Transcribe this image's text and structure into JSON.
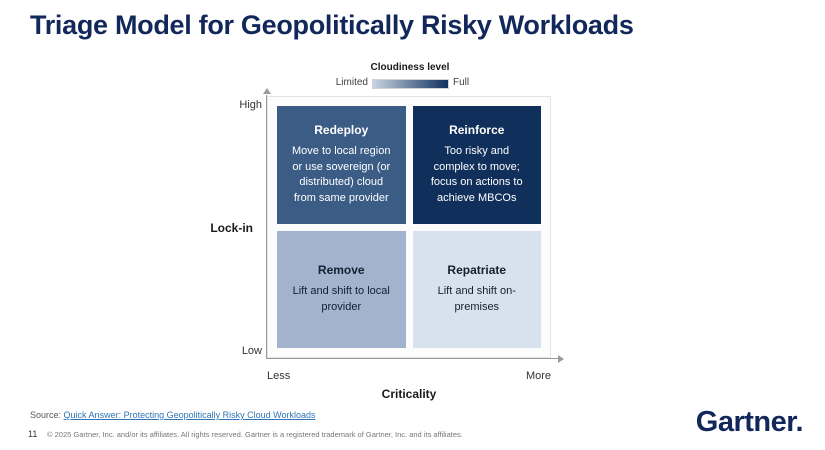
{
  "slide": {
    "title": "Triage Model for Geopolitically Risky Workloads",
    "page_number": "11",
    "source_label": "Source:",
    "source_link": "Quick Answer: Protecting Geopolitically Risky Cloud Workloads",
    "copyright": "© 2025 Gartner, Inc. and/or its affiliates. All rights reserved. Gartner is a registered trademark of Gartner, Inc. and its affiliates.",
    "logo_text": "Gartner."
  },
  "legend": {
    "title": "Cloudiness level",
    "min_label": "Limited",
    "max_label": "Full",
    "gradient_start": "#c9d4e2",
    "gradient_end": "#10305e"
  },
  "matrix": {
    "y_axis": {
      "label": "Lock-in",
      "top": "High",
      "bottom": "Low"
    },
    "x_axis": {
      "label": "Criticality",
      "left": "Less",
      "right": "More"
    },
    "quadrants": [
      {
        "position": "top-left",
        "title": "Redeploy",
        "body": "Move to local region or use sovereign (or distributed) cloud from same provider",
        "bg": "#3a5c85",
        "text": "#ffffff"
      },
      {
        "position": "top-right",
        "title": "Reinforce",
        "body": "Too risky and complex to move; focus on actions to achieve MBCOs",
        "bg": "#112f5b",
        "text": "#ffffff"
      },
      {
        "position": "bottom-left",
        "title": "Remove",
        "body": "Lift and shift to local provider",
        "bg": "#a3b3cd",
        "text": "#141f30"
      },
      {
        "position": "bottom-right",
        "title": "Repatriate",
        "body": "Lift and shift on-premises",
        "bg": "#d7e2ee",
        "text": "#141f30"
      }
    ]
  }
}
